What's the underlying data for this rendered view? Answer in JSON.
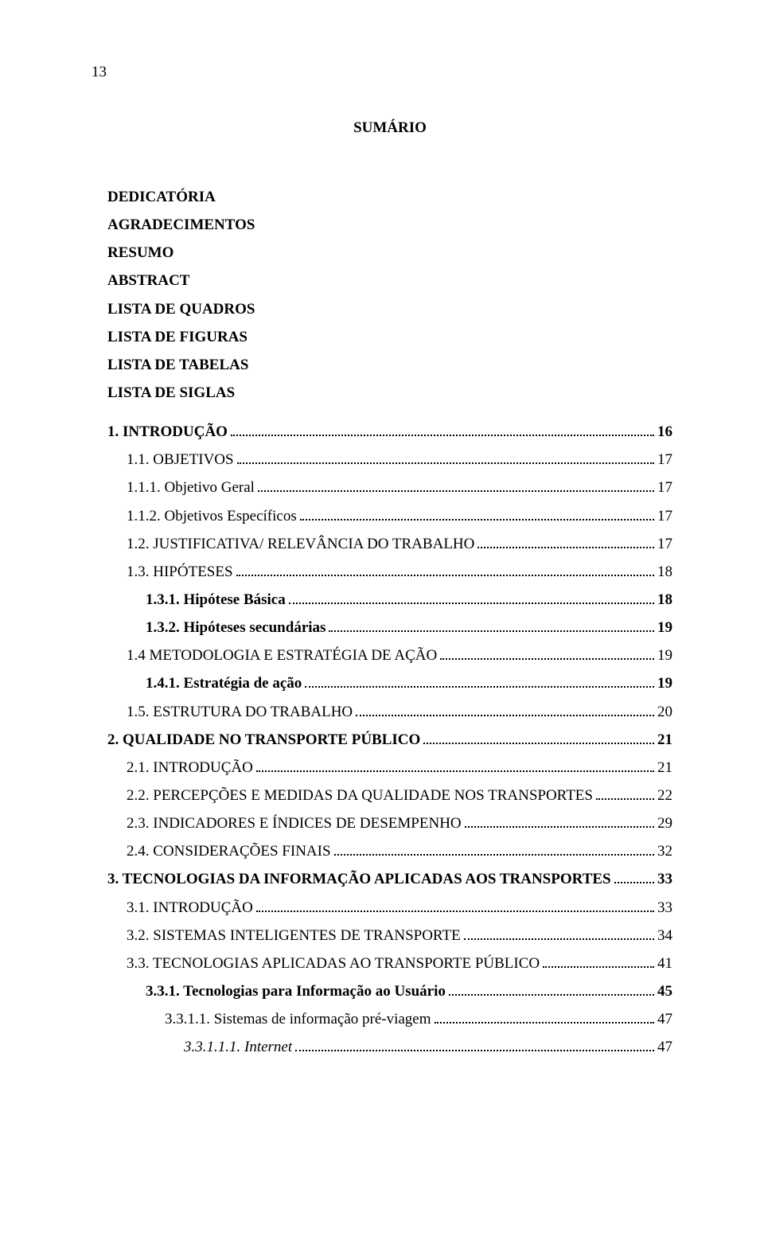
{
  "page_number": "13",
  "title": "SUMÁRIO",
  "front_matter": [
    "DEDICATÓRIA",
    "AGRADECIMENTOS",
    "RESUMO",
    "ABSTRACT",
    "LISTA DE QUADROS",
    "LISTA DE FIGURAS",
    "LISTA DE TABELAS",
    "LISTA DE SIGLAS"
  ],
  "entries": [
    {
      "label": "1. INTRODUÇÃO",
      "page": "16",
      "bold": true,
      "italic": false,
      "indent": 0
    },
    {
      "label": "1.1. OBJETIVOS",
      "page": "17",
      "bold": false,
      "italic": false,
      "indent": 1
    },
    {
      "label": "1.1.1. Objetivo Geral",
      "page": "17",
      "bold": false,
      "italic": false,
      "indent": 1
    },
    {
      "label": "1.1.2. Objetivos Específicos",
      "page": "17",
      "bold": false,
      "italic": false,
      "indent": 1
    },
    {
      "label": "1.2. JUSTIFICATIVA/ RELEVÂNCIA DO TRABALHO",
      "page": "17",
      "bold": false,
      "italic": false,
      "indent": 1
    },
    {
      "label": "1.3. HIPÓTESES",
      "page": "18",
      "bold": false,
      "italic": false,
      "indent": 1
    },
    {
      "label": "1.3.1. Hipótese Básica",
      "page": "18",
      "bold": true,
      "italic": false,
      "indent": 2
    },
    {
      "label": "1.3.2. Hipóteses secundárias",
      "page": "19",
      "bold": true,
      "italic": false,
      "indent": 2
    },
    {
      "label": "1.4 METODOLOGIA E ESTRATÉGIA DE AÇÃO",
      "page": "19",
      "bold": false,
      "italic": false,
      "indent": 1
    },
    {
      "label": "1.4.1. Estratégia de ação",
      "page": "19",
      "bold": true,
      "italic": false,
      "indent": 2
    },
    {
      "label": "1.5. ESTRUTURA DO TRABALHO",
      "page": "20",
      "bold": false,
      "italic": false,
      "indent": 1
    },
    {
      "label": "2. QUALIDADE NO TRANSPORTE PÚBLICO",
      "page": "21",
      "bold": true,
      "italic": false,
      "indent": 0
    },
    {
      "label": "2.1. INTRODUÇÃO",
      "page": "21",
      "bold": false,
      "italic": false,
      "indent": 1
    },
    {
      "label": "2.2. PERCEPÇÕES E MEDIDAS DA QUALIDADE NOS TRANSPORTES",
      "page": "22",
      "bold": false,
      "italic": false,
      "indent": 1
    },
    {
      "label": "2.3. INDICADORES E ÍNDICES DE DESEMPENHO",
      "page": "29",
      "bold": false,
      "italic": false,
      "indent": 1
    },
    {
      "label": "2.4. CONSIDERAÇÕES FINAIS",
      "page": "32",
      "bold": false,
      "italic": false,
      "indent": 1
    },
    {
      "label": "3. TECNOLOGIAS DA INFORMAÇÃO APLICADAS AOS TRANSPORTES",
      "page": "33",
      "bold": true,
      "italic": false,
      "indent": 0
    },
    {
      "label": "3.1. INTRODUÇÃO",
      "page": "33",
      "bold": false,
      "italic": false,
      "indent": 1
    },
    {
      "label": "3.2. SISTEMAS INTELIGENTES DE TRANSPORTE",
      "page": "34",
      "bold": false,
      "italic": false,
      "indent": 1
    },
    {
      "label": "3.3. TECNOLOGIAS APLICADAS AO TRANSPORTE PÚBLICO",
      "page": "41",
      "bold": false,
      "italic": false,
      "indent": 1
    },
    {
      "label": "3.3.1. Tecnologias para Informação ao Usuário",
      "page": "45",
      "bold": true,
      "italic": false,
      "indent": 2
    },
    {
      "label": "3.3.1.1. Sistemas de informação pré-viagem",
      "page": "47",
      "bold": false,
      "italic": false,
      "indent": 3
    },
    {
      "label": "3.3.1.1.1. Internet",
      "page": "47",
      "bold": false,
      "italic": true,
      "indent": 4
    }
  ]
}
